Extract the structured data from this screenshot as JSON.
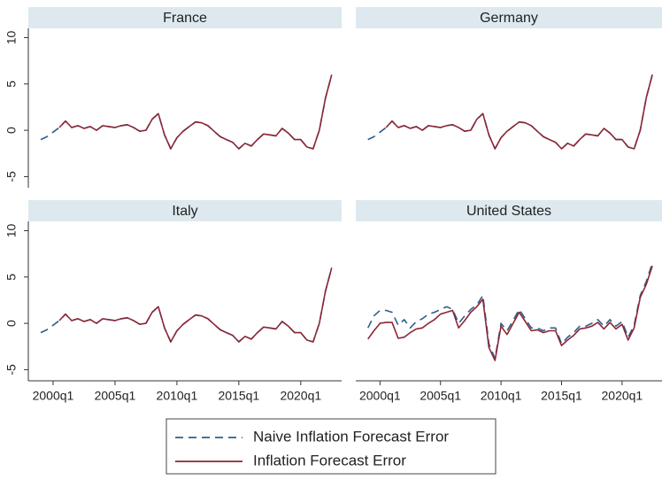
{
  "chart_data": [
    {
      "type": "line",
      "title": "France",
      "x": [
        1999.0,
        1999.5,
        2000.0,
        2000.5,
        2001.0,
        2001.5,
        2002.0,
        2002.5,
        2003.0,
        2003.5,
        2004.0,
        2004.5,
        2005.0,
        2005.5,
        2006.0,
        2006.5,
        2007.0,
        2007.5,
        2008.0,
        2008.5,
        2009.0,
        2009.5,
        2010.0,
        2010.5,
        2011.0,
        2011.5,
        2012.0,
        2012.5,
        2013.0,
        2013.5,
        2014.0,
        2014.5,
        2015.0,
        2015.5,
        2016.0,
        2016.5,
        2017.0,
        2017.5,
        2018.0,
        2018.5,
        2019.0,
        2019.5,
        2020.0,
        2020.5,
        2021.0,
        2021.5,
        2022.0,
        2022.5
      ],
      "series": [
        {
          "name": "Naive Inflation Forecast Error",
          "color": "#2e5f8a",
          "line_style": "dashed",
          "values": [
            -1.0,
            -0.7,
            -0.2,
            0.3,
            1.0,
            0.3,
            0.5,
            0.2,
            0.4,
            0.0,
            0.5,
            0.4,
            0.3,
            0.5,
            0.6,
            0.3,
            -0.1,
            0.0,
            1.2,
            1.8,
            -0.5,
            -2.0,
            -0.8,
            -0.1,
            0.4,
            0.9,
            0.8,
            0.5,
            -0.1,
            -0.7,
            -1.0,
            -1.3,
            -2.0,
            -1.4,
            -1.7,
            -1.0,
            -0.4,
            -0.5,
            -0.6,
            0.2,
            -0.3,
            -1.0,
            -1.0,
            -1.8,
            -2.0,
            0.0,
            3.5,
            6.0
          ]
        },
        {
          "name": "Inflation Forecast Error",
          "color": "#8b2635",
          "line_style": "solid",
          "values": [
            null,
            null,
            null,
            0.3,
            1.0,
            0.3,
            0.5,
            0.2,
            0.4,
            0.0,
            0.5,
            0.4,
            0.3,
            0.5,
            0.6,
            0.3,
            -0.1,
            0.0,
            1.2,
            1.8,
            -0.5,
            -2.0,
            -0.8,
            -0.1,
            0.4,
            0.9,
            0.8,
            0.5,
            -0.1,
            -0.7,
            -1.0,
            -1.3,
            -2.0,
            -1.4,
            -1.7,
            -1.0,
            -0.4,
            -0.5,
            -0.6,
            0.2,
            -0.3,
            -1.0,
            -1.0,
            -1.8,
            -2.0,
            0.0,
            3.5,
            6.0
          ]
        }
      ],
      "xlim": [
        1998,
        2023.3
      ],
      "ylim": [
        -6.2,
        11
      ],
      "yticks": [
        -5,
        0,
        5,
        10
      ]
    },
    {
      "type": "line",
      "title": "Germany",
      "x": [
        1999.0,
        1999.5,
        2000.0,
        2000.5,
        2001.0,
        2001.5,
        2002.0,
        2002.5,
        2003.0,
        2003.5,
        2004.0,
        2004.5,
        2005.0,
        2005.5,
        2006.0,
        2006.5,
        2007.0,
        2007.5,
        2008.0,
        2008.5,
        2009.0,
        2009.5,
        2010.0,
        2010.5,
        2011.0,
        2011.5,
        2012.0,
        2012.5,
        2013.0,
        2013.5,
        2014.0,
        2014.5,
        2015.0,
        2015.5,
        2016.0,
        2016.5,
        2017.0,
        2017.5,
        2018.0,
        2018.5,
        2019.0,
        2019.5,
        2020.0,
        2020.5,
        2021.0,
        2021.5,
        2022.0,
        2022.5
      ],
      "series": [
        {
          "color": "#2e5f8a",
          "line_style": "dashed",
          "values": [
            -1.0,
            -0.7,
            -0.2,
            0.3,
            1.0,
            0.3,
            0.5,
            0.2,
            0.4,
            0.0,
            0.5,
            0.4,
            0.3,
            0.5,
            0.6,
            0.3,
            -0.1,
            0.0,
            1.2,
            1.8,
            -0.5,
            -2.0,
            -0.8,
            -0.1,
            0.4,
            0.9,
            0.8,
            0.5,
            -0.1,
            -0.7,
            -1.0,
            -1.3,
            -2.0,
            -1.4,
            -1.7,
            -1.0,
            -0.4,
            -0.5,
            -0.6,
            0.2,
            -0.3,
            -1.0,
            -1.0,
            -1.8,
            -2.0,
            0.0,
            3.5,
            6.0
          ]
        },
        {
          "color": "#8b2635",
          "line_style": "solid",
          "values": [
            null,
            null,
            null,
            0.3,
            1.0,
            0.3,
            0.5,
            0.2,
            0.4,
            0.0,
            0.5,
            0.4,
            0.3,
            0.5,
            0.6,
            0.3,
            -0.1,
            0.0,
            1.2,
            1.8,
            -0.5,
            -2.0,
            -0.8,
            -0.1,
            0.4,
            0.9,
            0.8,
            0.5,
            -0.1,
            -0.7,
            -1.0,
            -1.3,
            -2.0,
            -1.4,
            -1.7,
            -1.0,
            -0.4,
            -0.5,
            -0.6,
            0.2,
            -0.3,
            -1.0,
            -1.0,
            -1.8,
            -2.0,
            0.0,
            3.5,
            6.0
          ]
        }
      ],
      "xlim": [
        1998,
        2023.3
      ],
      "ylim": [
        -6.2,
        11
      ]
    },
    {
      "type": "line",
      "title": "Italy",
      "x": [
        1999.0,
        1999.5,
        2000.0,
        2000.5,
        2001.0,
        2001.5,
        2002.0,
        2002.5,
        2003.0,
        2003.5,
        2004.0,
        2004.5,
        2005.0,
        2005.5,
        2006.0,
        2006.5,
        2007.0,
        2007.5,
        2008.0,
        2008.5,
        2009.0,
        2009.5,
        2010.0,
        2010.5,
        2011.0,
        2011.5,
        2012.0,
        2012.5,
        2013.0,
        2013.5,
        2014.0,
        2014.5,
        2015.0,
        2015.5,
        2016.0,
        2016.5,
        2017.0,
        2017.5,
        2018.0,
        2018.5,
        2019.0,
        2019.5,
        2020.0,
        2020.5,
        2021.0,
        2021.5,
        2022.0,
        2022.5
      ],
      "series": [
        {
          "color": "#2e5f8a",
          "line_style": "dashed",
          "values": [
            -1.0,
            -0.7,
            -0.2,
            0.3,
            1.0,
            0.3,
            0.5,
            0.2,
            0.4,
            0.0,
            0.5,
            0.4,
            0.3,
            0.5,
            0.6,
            0.3,
            -0.1,
            0.0,
            1.2,
            1.8,
            -0.5,
            -2.0,
            -0.8,
            -0.1,
            0.4,
            0.9,
            0.8,
            0.5,
            -0.1,
            -0.7,
            -1.0,
            -1.3,
            -2.0,
            -1.4,
            -1.7,
            -1.0,
            -0.4,
            -0.5,
            -0.6,
            0.2,
            -0.3,
            -1.0,
            -1.0,
            -1.8,
            -2.0,
            0.0,
            3.5,
            6.0
          ]
        },
        {
          "color": "#8b2635",
          "line_style": "solid",
          "values": [
            null,
            null,
            null,
            0.3,
            1.0,
            0.3,
            0.5,
            0.2,
            0.4,
            0.0,
            0.5,
            0.4,
            0.3,
            0.5,
            0.6,
            0.3,
            -0.1,
            0.0,
            1.2,
            1.8,
            -0.5,
            -2.0,
            -0.8,
            -0.1,
            0.4,
            0.9,
            0.8,
            0.5,
            -0.1,
            -0.7,
            -1.0,
            -1.3,
            -2.0,
            -1.4,
            -1.7,
            -1.0,
            -0.4,
            -0.5,
            -0.6,
            0.2,
            -0.3,
            -1.0,
            -1.0,
            -1.8,
            -2.0,
            0.0,
            3.5,
            6.0
          ]
        }
      ],
      "xlim": [
        1998,
        2023.3
      ],
      "ylim": [
        -6.2,
        11
      ],
      "yticks": [
        -5,
        0,
        5,
        10
      ],
      "xticks": [
        {
          "value": 2000,
          "label": "2000q1"
        },
        {
          "value": 2005,
          "label": "2005q1"
        },
        {
          "value": 2010,
          "label": "2010q1"
        },
        {
          "value": 2015,
          "label": "2015q1"
        },
        {
          "value": 2020,
          "label": "2020q1"
        }
      ]
    },
    {
      "type": "line",
      "title": "United States",
      "x": [
        1999.0,
        1999.5,
        2000.0,
        2000.5,
        2001.0,
        2001.5,
        2002.0,
        2002.5,
        2003.0,
        2003.5,
        2004.0,
        2004.5,
        2005.0,
        2005.5,
        2006.0,
        2006.5,
        2007.0,
        2007.5,
        2008.0,
        2008.5,
        2009.0,
        2009.5,
        2010.0,
        2010.5,
        2011.0,
        2011.5,
        2012.0,
        2012.5,
        2013.0,
        2013.5,
        2014.0,
        2014.5,
        2015.0,
        2015.5,
        2016.0,
        2016.5,
        2017.0,
        2017.5,
        2018.0,
        2018.5,
        2019.0,
        2019.5,
        2020.0,
        2020.5,
        2021.0,
        2021.5,
        2022.0,
        2022.5
      ],
      "series": [
        {
          "color": "#2e5f8a",
          "line_style": "dashed",
          "values": [
            -0.5,
            0.8,
            1.4,
            1.4,
            1.2,
            -0.2,
            0.4,
            -0.5,
            0.2,
            0.5,
            1.0,
            1.2,
            1.5,
            1.8,
            1.5,
            0.0,
            0.8,
            1.5,
            2.0,
            3.0,
            -2.2,
            -3.8,
            0.0,
            -0.8,
            0.3,
            1.5,
            0.5,
            -0.5,
            -0.5,
            -0.8,
            -0.5,
            -0.5,
            -2.2,
            -1.5,
            -1.0,
            -0.3,
            -0.3,
            0.0,
            0.4,
            -0.3,
            0.4,
            -0.3,
            0.2,
            -1.5,
            -0.2,
            3.0,
            4.5,
            6.5
          ]
        },
        {
          "color": "#8b2635",
          "line_style": "solid",
          "values": [
            -1.7,
            -0.8,
            0.0,
            0.1,
            0.1,
            -1.6,
            -1.5,
            -1.0,
            -0.6,
            -0.5,
            0.0,
            0.4,
            1.0,
            1.2,
            1.4,
            -0.5,
            0.3,
            1.2,
            1.8,
            2.6,
            -2.6,
            -4.0,
            -0.3,
            -1.2,
            0.0,
            1.2,
            0.2,
            -0.8,
            -0.7,
            -1.0,
            -0.8,
            -0.8,
            -2.4,
            -1.8,
            -1.3,
            -0.6,
            -0.5,
            -0.3,
            0.1,
            -0.6,
            0.1,
            -0.6,
            -0.1,
            -1.8,
            -0.5,
            2.8,
            4.2,
            6.2
          ]
        }
      ],
      "xlim": [
        1998,
        2023.3
      ],
      "ylim": [
        -6.2,
        11
      ],
      "xticks": [
        {
          "value": 2000,
          "label": "2000q1"
        },
        {
          "value": 2005,
          "label": "2005q1"
        },
        {
          "value": 2010,
          "label": "2010q1"
        },
        {
          "value": 2015,
          "label": "2015q1"
        },
        {
          "value": 2020,
          "label": "2020q1"
        }
      ]
    }
  ]
}
